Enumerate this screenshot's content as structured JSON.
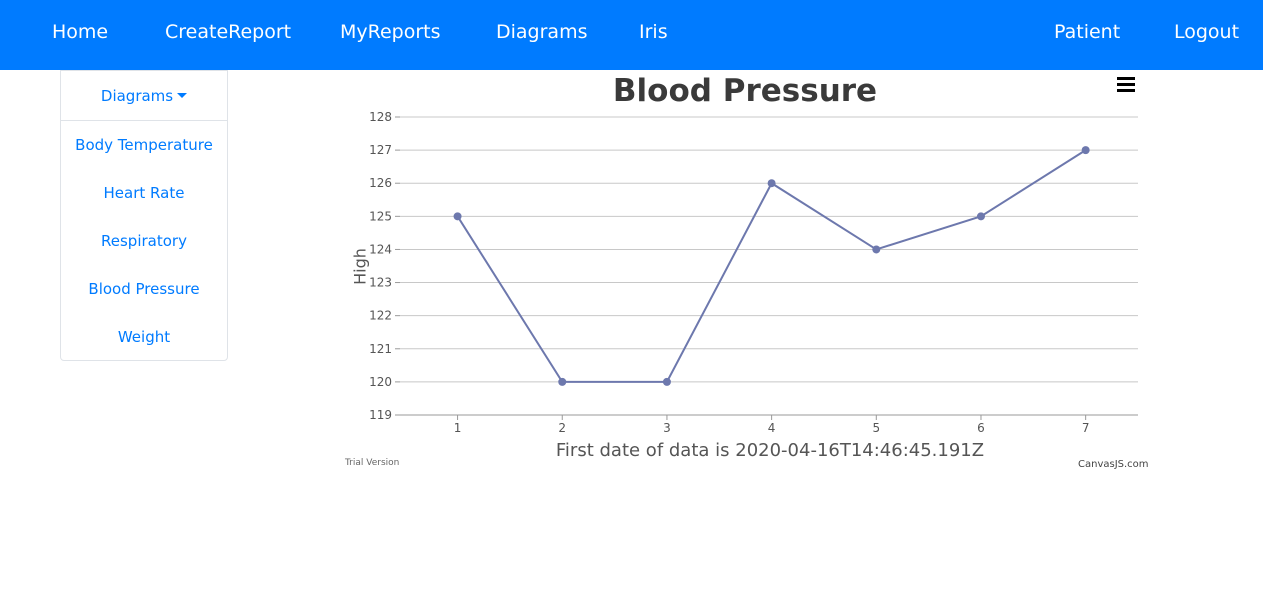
{
  "navbar": {
    "left_items": [
      {
        "label": "Home"
      },
      {
        "label": "CreateReport"
      },
      {
        "label": "MyReports"
      },
      {
        "label": "Diagrams"
      },
      {
        "label": "Iris"
      }
    ],
    "right_items": [
      {
        "label": "Patient"
      },
      {
        "label": "Logout"
      }
    ],
    "color": "#007bff"
  },
  "sidebar": {
    "dropdown_label": "Diagrams",
    "items": [
      {
        "label": "Body Temperature"
      },
      {
        "label": "Heart Rate"
      },
      {
        "label": "Respiratory"
      },
      {
        "label": "Blood Pressure"
      },
      {
        "label": "Weight"
      }
    ]
  },
  "chart": {
    "menu_icon": "hamburger-menu-icon",
    "trial_text": "Trial Version",
    "credit_text": "CanvasJS.com"
  },
  "chart_data": {
    "type": "line",
    "title": "Blood Pressure",
    "xlabel": "First date of data is 2020-04-16T14:46:45.191Z",
    "ylabel": "High",
    "x": [
      1,
      2,
      3,
      4,
      5,
      6,
      7
    ],
    "series": [
      {
        "values": [
          125,
          120,
          120,
          126,
          124,
          125,
          127
        ],
        "color": "#6d78ad"
      }
    ],
    "ylim": [
      119,
      128
    ],
    "yticks": [
      119,
      120,
      121,
      122,
      123,
      124,
      125,
      126,
      127,
      128
    ],
    "xticks": [
      1,
      2,
      3,
      4,
      5,
      6,
      7
    ],
    "grid": true,
    "legend": "none"
  }
}
